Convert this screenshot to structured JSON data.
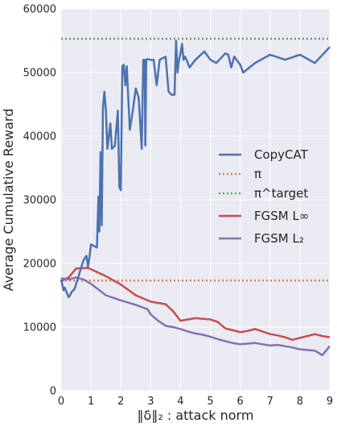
{
  "chart_data": {
    "type": "line",
    "xlabel": "‖δ‖₂ : attack norm",
    "ylabel": "Average Cumulative Reward",
    "xlim": [
      0,
      9
    ],
    "ylim": [
      0,
      60000
    ],
    "xticks": [
      "0",
      "1",
      "2",
      "3",
      "4",
      "5",
      "6",
      "7",
      "8",
      "9"
    ],
    "yticks": [
      "0",
      "10000",
      "20000",
      "30000",
      "40000",
      "50000",
      "60000"
    ],
    "grid": true,
    "legend_position": "right",
    "series": [
      {
        "name": "CopyCAT",
        "color": "#4c72b0",
        "style": "solid",
        "x": [
          0,
          0.08,
          0.12,
          0.18,
          0.25,
          0.3,
          0.35,
          0.45,
          0.55,
          0.65,
          0.75,
          0.85,
          0.9,
          0.95,
          1.0,
          1.2,
          1.25,
          1.28,
          1.32,
          1.36,
          1.4,
          1.45,
          1.5,
          1.55,
          1.6,
          1.65,
          1.7,
          1.8,
          1.9,
          1.95,
          2.0,
          2.05,
          2.1,
          2.15,
          2.2,
          2.3,
          2.4,
          2.5,
          2.6,
          2.7,
          2.75,
          2.8,
          2.82,
          2.85,
          2.88,
          3.0,
          3.1,
          3.2,
          3.3,
          3.5,
          3.6,
          3.7,
          3.8,
          3.85,
          3.9,
          3.95,
          4.0,
          4.05,
          4.1,
          4.15,
          4.2,
          4.3,
          4.5,
          4.8,
          5.0,
          5.2,
          5.5,
          5.6,
          5.7,
          5.8,
          6.0,
          6.1,
          6.5,
          7.0,
          7.2,
          7.5,
          8.0,
          8.5,
          9.0
        ],
        "values": [
          17500,
          15800,
          16200,
          15500,
          14700,
          15000,
          15500,
          16000,
          17500,
          19000,
          20500,
          21200,
          19500,
          21000,
          23000,
          22500,
          30500,
          25000,
          37500,
          26000,
          44500,
          47000,
          44000,
          38000,
          40000,
          42000,
          38000,
          38500,
          44000,
          32000,
          31500,
          51000,
          51200,
          48000,
          51000,
          41000,
          44000,
          47500,
          46000,
          38000,
          52000,
          52000,
          38500,
          52000,
          52100,
          52000,
          52000,
          48000,
          52000,
          52500,
          47000,
          46500,
          46500,
          55000,
          50000,
          52000,
          53000,
          54500,
          52000,
          52500,
          52000,
          50800,
          52000,
          53300,
          52000,
          51500,
          53000,
          52800,
          50800,
          52500,
          51200,
          50000,
          51500,
          52800,
          52500,
          52000,
          52800,
          51500,
          54000
        ]
      },
      {
        "name": "π",
        "color": "#dd8452",
        "style": "dotted",
        "x": [
          0,
          9
        ],
        "values": [
          17300,
          17300
        ]
      },
      {
        "name": "π^target",
        "color": "#55a868",
        "style": "dotted",
        "x": [
          0,
          9
        ],
        "values": [
          55300,
          55300
        ]
      },
      {
        "name": "FGSM L∞",
        "color": "#c44e52",
        "style": "solid",
        "x": [
          0,
          0.25,
          0.5,
          0.9,
          1.5,
          2.0,
          2.5,
          3.0,
          3.25,
          3.5,
          3.75,
          4.0,
          4.25,
          4.5,
          4.75,
          5.0,
          5.25,
          5.5,
          5.75,
          6.0,
          6.25,
          6.5,
          6.75,
          7.0,
          7.25,
          7.5,
          7.75,
          8.0,
          8.25,
          8.5,
          8.75,
          9.0
        ],
        "values": [
          17200,
          17800,
          19200,
          19300,
          18000,
          16700,
          15000,
          14000,
          13800,
          13600,
          12500,
          11000,
          11200,
          11400,
          11300,
          11200,
          10800,
          9800,
          9500,
          9200,
          9400,
          9700,
          9300,
          8900,
          8700,
          8400,
          8000,
          8300,
          8600,
          8900,
          8600,
          8400
        ]
      },
      {
        "name": "FGSM L₂",
        "color": "#8172b2",
        "style": "solid",
        "x": [
          0,
          0.25,
          0.5,
          0.75,
          1.0,
          1.5,
          2.0,
          2.5,
          2.9,
          3.0,
          3.25,
          3.5,
          3.75,
          4.0,
          4.25,
          4.5,
          4.75,
          5.0,
          5.25,
          5.5,
          5.75,
          6.0,
          6.25,
          6.5,
          6.75,
          7.0,
          7.25,
          7.5,
          7.75,
          8.0,
          8.5,
          8.75,
          9.0
        ],
        "values": [
          17700,
          17500,
          17800,
          17500,
          16800,
          15000,
          14200,
          13500,
          12800,
          12000,
          11000,
          10200,
          10000,
          9700,
          9300,
          9000,
          8800,
          8500,
          8100,
          7800,
          7500,
          7300,
          7400,
          7500,
          7300,
          7100,
          7200,
          7000,
          6800,
          6500,
          6300,
          5600,
          7000
        ]
      }
    ]
  }
}
